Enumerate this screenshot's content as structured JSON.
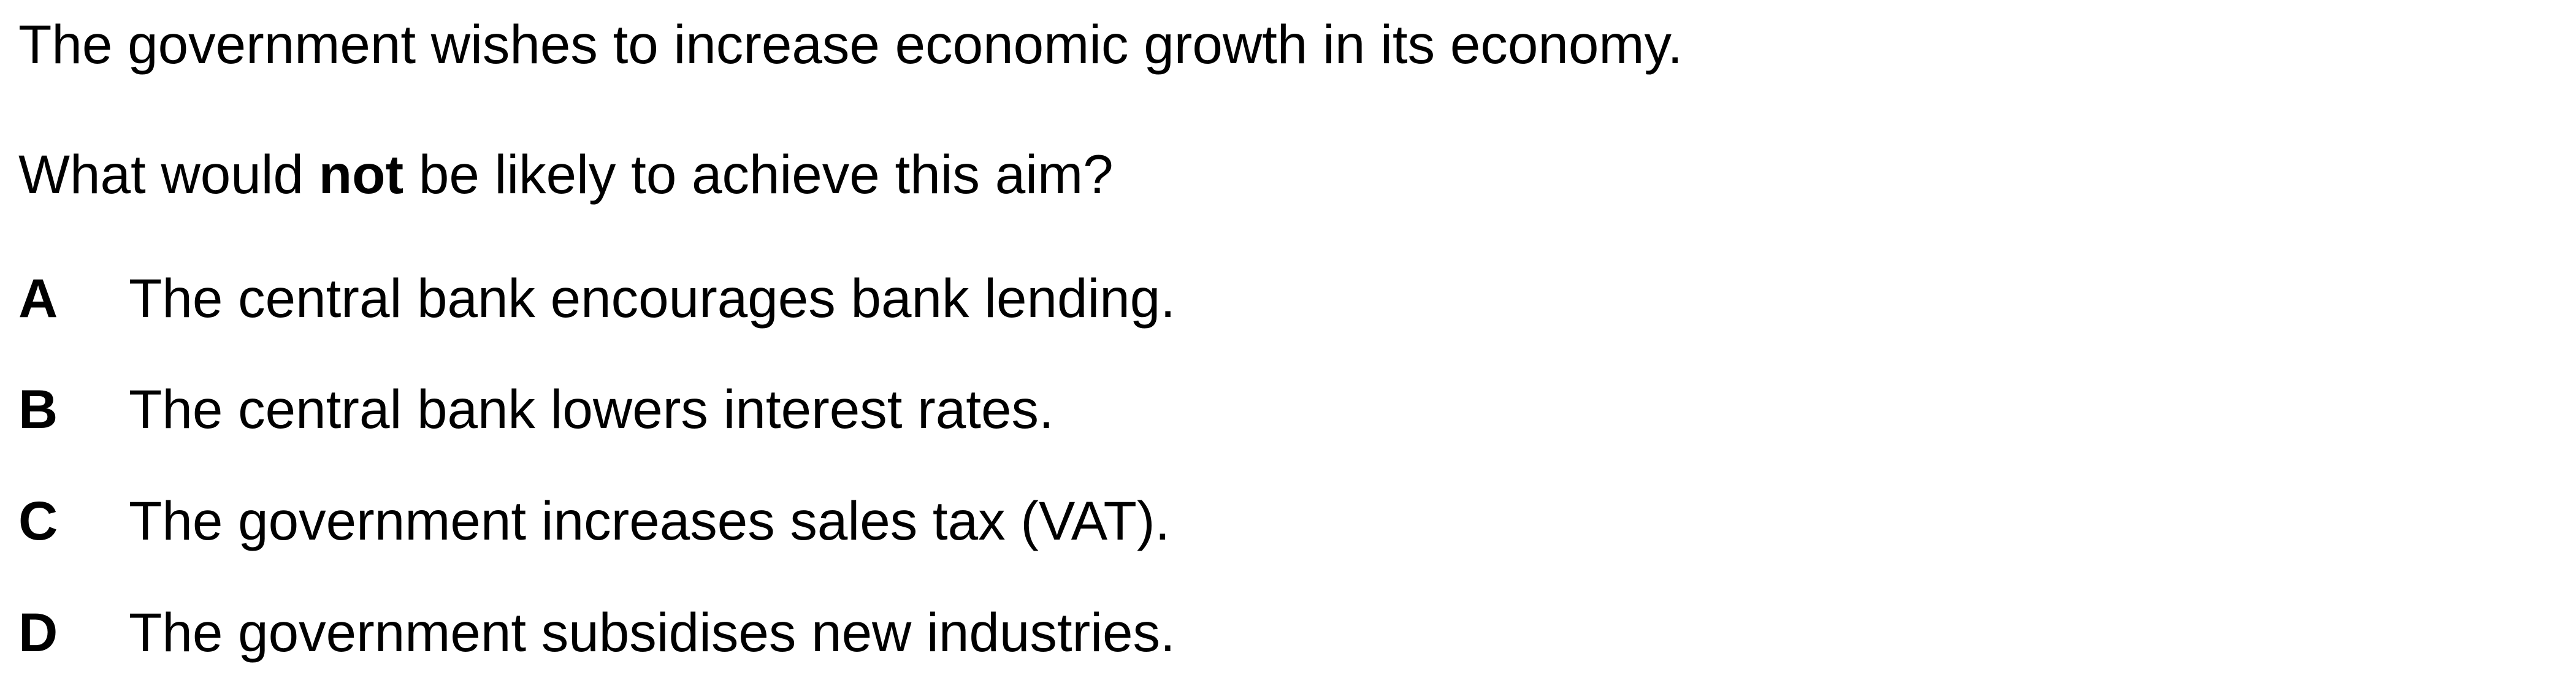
{
  "question": {
    "stem": "The government wishes to increase economic growth in its economy.",
    "prompt_before": "What would ",
    "prompt_emphasis": "not",
    "prompt_after": " be likely to achieve this aim?"
  },
  "options": [
    {
      "letter": "A",
      "text": "The central bank encourages bank lending."
    },
    {
      "letter": "B",
      "text": "The central bank lowers interest rates."
    },
    {
      "letter": "C",
      "text": "The government increases sales tax (VAT)."
    },
    {
      "letter": "D",
      "text": "The government subsidises new industries."
    }
  ]
}
